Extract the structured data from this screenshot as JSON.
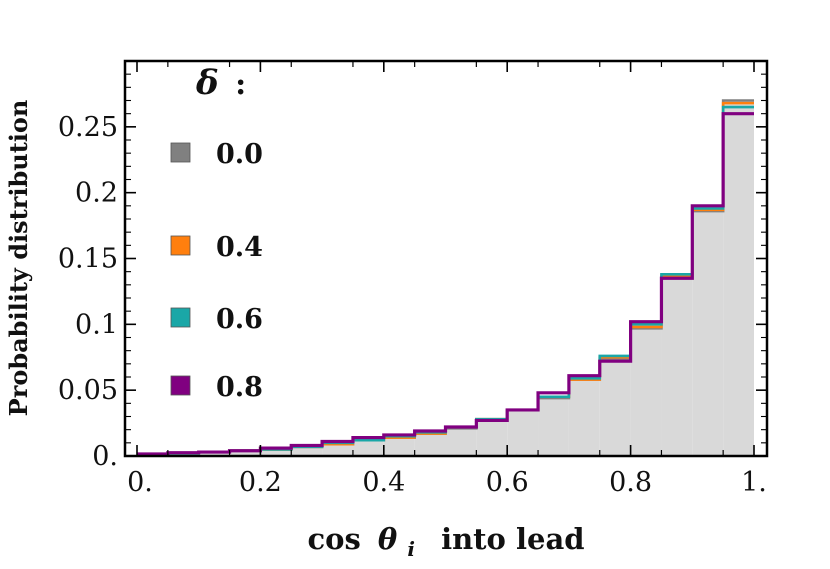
{
  "chart_data": {
    "type": "bar",
    "subtype": "step-histogram",
    "ylabel": "Probability distribution",
    "xlabel": "cos θ_i into lead",
    "xlabel_parts": {
      "func": "cos",
      "theta": "θ",
      "sub": "i",
      "rest": "into lead"
    },
    "xlim": [
      0,
      1
    ],
    "ylim": [
      0,
      0.3
    ],
    "xticks": [
      0,
      0.2,
      0.4,
      0.6,
      0.8,
      1.0
    ],
    "xtick_labels": [
      "0.",
      "0.2",
      "0.4",
      "0.6",
      "0.8",
      "1."
    ],
    "yticks": [
      0,
      0.05,
      0.1,
      0.15,
      0.2,
      0.25
    ],
    "ytick_labels": [
      "0.",
      "0.05",
      "0.1",
      "0.15",
      "0.2",
      "0.25"
    ],
    "bin_edges": [
      0,
      0.05,
      0.1,
      0.15,
      0.2,
      0.25,
      0.3,
      0.35,
      0.4,
      0.45,
      0.5,
      0.55,
      0.6,
      0.65,
      0.7,
      0.75,
      0.8,
      0.85,
      0.9,
      0.95,
      1.0
    ],
    "legend": {
      "title": "δ :",
      "title_symbol": "δ",
      "placement": "top-left"
    },
    "series": [
      {
        "name": "0.0",
        "color": "#808080",
        "filled": true,
        "values": [
          0.0015,
          0.002,
          0.003,
          0.004,
          0.005,
          0.007,
          0.009,
          0.012,
          0.014,
          0.017,
          0.021,
          0.027,
          0.035,
          0.044,
          0.058,
          0.074,
          0.097,
          0.136,
          0.186,
          0.27
        ]
      },
      {
        "name": "0.4",
        "color": "#ff7f0e",
        "filled": false,
        "values": [
          0.0015,
          0.002,
          0.003,
          0.004,
          0.005,
          0.007,
          0.009,
          0.012,
          0.014,
          0.017,
          0.022,
          0.028,
          0.035,
          0.045,
          0.058,
          0.075,
          0.098,
          0.137,
          0.187,
          0.268
        ]
      },
      {
        "name": "0.6",
        "color": "#1aa7a7",
        "filled": false,
        "values": [
          0.0015,
          0.002,
          0.003,
          0.004,
          0.005,
          0.007,
          0.01,
          0.012,
          0.015,
          0.018,
          0.022,
          0.028,
          0.035,
          0.045,
          0.059,
          0.076,
          0.1,
          0.138,
          0.188,
          0.265
        ]
      },
      {
        "name": "0.8",
        "color": "#800080",
        "filled": false,
        "values": [
          0.0015,
          0.0025,
          0.003,
          0.004,
          0.006,
          0.008,
          0.011,
          0.014,
          0.016,
          0.019,
          0.022,
          0.027,
          0.035,
          0.048,
          0.061,
          0.072,
          0.102,
          0.135,
          0.19,
          0.26
        ]
      }
    ],
    "grid": false
  }
}
